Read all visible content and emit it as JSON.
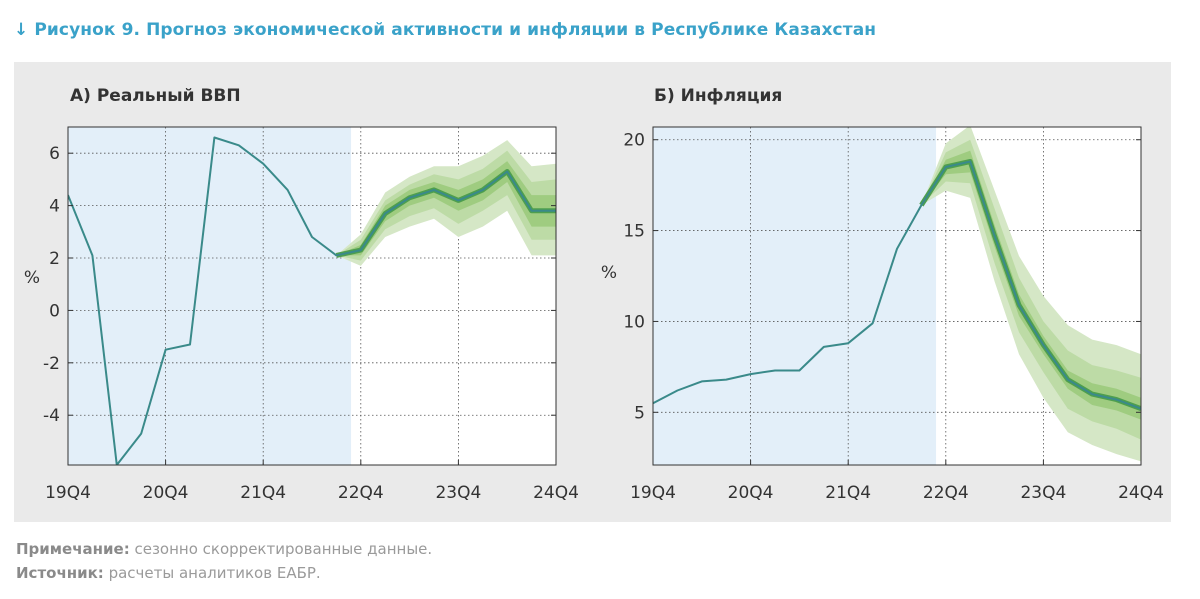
{
  "figure": {
    "title": "↓ Рисунок 9. Прогноз экономической активности и инфляции в Республике Казахстан"
  },
  "note": {
    "label": "Примечание:",
    "text": "сезонно скорректированные данные."
  },
  "source": {
    "label": "Источник:",
    "text": "расчеты аналитиков ЕАБР."
  },
  "colors": {
    "line": "#3a8a8a",
    "history_shade": "#e3eff9",
    "band_outer": "#d5e7c6",
    "band_mid": "#bddba6",
    "band_inner": "#9fcc80",
    "forecast_line": "#4e9e4e",
    "panel_bg": "#eaeaea"
  },
  "chart_data": [
    {
      "type": "line",
      "title": "А) Реальный ВВП",
      "ylabel": "%",
      "ylim": [
        -5.9,
        7.0
      ],
      "yticks": [
        6,
        4,
        2,
        0,
        -2,
        -4
      ],
      "ytick_labels": [
        "6",
        "4",
        "2",
        "0",
        "-2",
        "-4"
      ],
      "xlim": [
        0,
        20
      ],
      "xticks": [
        0,
        4,
        8,
        12,
        16,
        20
      ],
      "xtick_labels": [
        "19Q4",
        "20Q4",
        "21Q4",
        "22Q4",
        "23Q4",
        "24Q4"
      ],
      "history_shade_until": 11.6,
      "grid": true,
      "series": [
        {
          "x": [
            0,
            1,
            2,
            3,
            4,
            5,
            6,
            7,
            8,
            9,
            10,
            11,
            12,
            13,
            14,
            15,
            16,
            17,
            18,
            19,
            20
          ],
          "values": [
            4.4,
            2.1,
            -5.9,
            -4.7,
            -1.5,
            -1.3,
            6.6,
            6.3,
            5.6,
            4.6,
            2.8,
            2.1,
            2.3,
            3.7,
            4.3,
            4.6,
            4.2,
            4.6,
            5.3,
            3.8,
            3.8
          ]
        }
      ],
      "fan": {
        "x": [
          11,
          12,
          13,
          14,
          15,
          16,
          17,
          18,
          19,
          20
        ],
        "outer_upper": [
          2.1,
          2.9,
          4.5,
          5.1,
          5.5,
          5.5,
          5.9,
          6.5,
          5.5,
          5.6
        ],
        "outer_lower": [
          2.1,
          1.7,
          2.8,
          3.2,
          3.5,
          2.8,
          3.2,
          3.8,
          2.1,
          2.1
        ],
        "mid_upper": [
          2.1,
          2.7,
          4.2,
          4.8,
          5.2,
          5.0,
          5.4,
          6.1,
          4.9,
          5.0
        ],
        "mid_lower": [
          2.1,
          1.9,
          3.1,
          3.6,
          3.9,
          3.3,
          3.8,
          4.4,
          2.7,
          2.7
        ],
        "inner_upper": [
          2.1,
          2.5,
          4.0,
          4.6,
          4.9,
          4.6,
          5.0,
          5.7,
          4.4,
          4.4
        ],
        "inner_lower": [
          2.1,
          2.1,
          3.4,
          4.0,
          4.3,
          3.8,
          4.2,
          4.9,
          3.2,
          3.2
        ]
      }
    },
    {
      "type": "line",
      "title": "Б) Инфляция",
      "ylabel": "%",
      "ylim": [
        2.1,
        20.7
      ],
      "yticks": [
        20,
        15,
        10,
        5
      ],
      "ytick_labels": [
        "20",
        "15",
        "10",
        "5"
      ],
      "xlim": [
        0,
        20
      ],
      "xticks": [
        0,
        4,
        8,
        12,
        16,
        20
      ],
      "xtick_labels": [
        "19Q4",
        "20Q4",
        "21Q4",
        "22Q4",
        "23Q4",
        "24Q4"
      ],
      "history_shade_until": 11.6,
      "grid": true,
      "series": [
        {
          "x": [
            0,
            1,
            2,
            3,
            4,
            5,
            6,
            7,
            8,
            9,
            10,
            11,
            12,
            13,
            14,
            15,
            16,
            17,
            18,
            19,
            20
          ],
          "values": [
            5.5,
            6.2,
            6.7,
            6.8,
            7.1,
            7.3,
            7.3,
            8.6,
            8.8,
            9.9,
            14.0,
            16.4,
            18.5,
            18.8,
            14.7,
            10.9,
            8.7,
            6.8,
            6.0,
            5.7,
            5.2
          ]
        }
      ],
      "fan": {
        "x": [
          11,
          12,
          13,
          14,
          15,
          16,
          17,
          18,
          19,
          20
        ],
        "outer_upper": [
          16.4,
          19.8,
          20.8,
          17.2,
          13.6,
          11.4,
          9.8,
          9.0,
          8.7,
          8.2
        ],
        "outer_lower": [
          16.4,
          17.2,
          16.8,
          12.2,
          8.2,
          5.8,
          3.9,
          3.2,
          2.7,
          2.3
        ],
        "mid_upper": [
          16.4,
          19.3,
          20.0,
          16.2,
          12.4,
          10.0,
          8.4,
          7.6,
          7.3,
          6.9
        ],
        "mid_lower": [
          16.4,
          17.7,
          17.6,
          13.2,
          9.4,
          7.2,
          5.2,
          4.5,
          4.1,
          3.5
        ],
        "inner_upper": [
          16.4,
          18.9,
          19.4,
          15.3,
          11.5,
          9.2,
          7.3,
          6.6,
          6.3,
          5.8
        ],
        "inner_lower": [
          16.4,
          18.1,
          18.2,
          14.1,
          10.3,
          8.2,
          6.3,
          5.4,
          5.1,
          4.6
        ]
      }
    }
  ]
}
